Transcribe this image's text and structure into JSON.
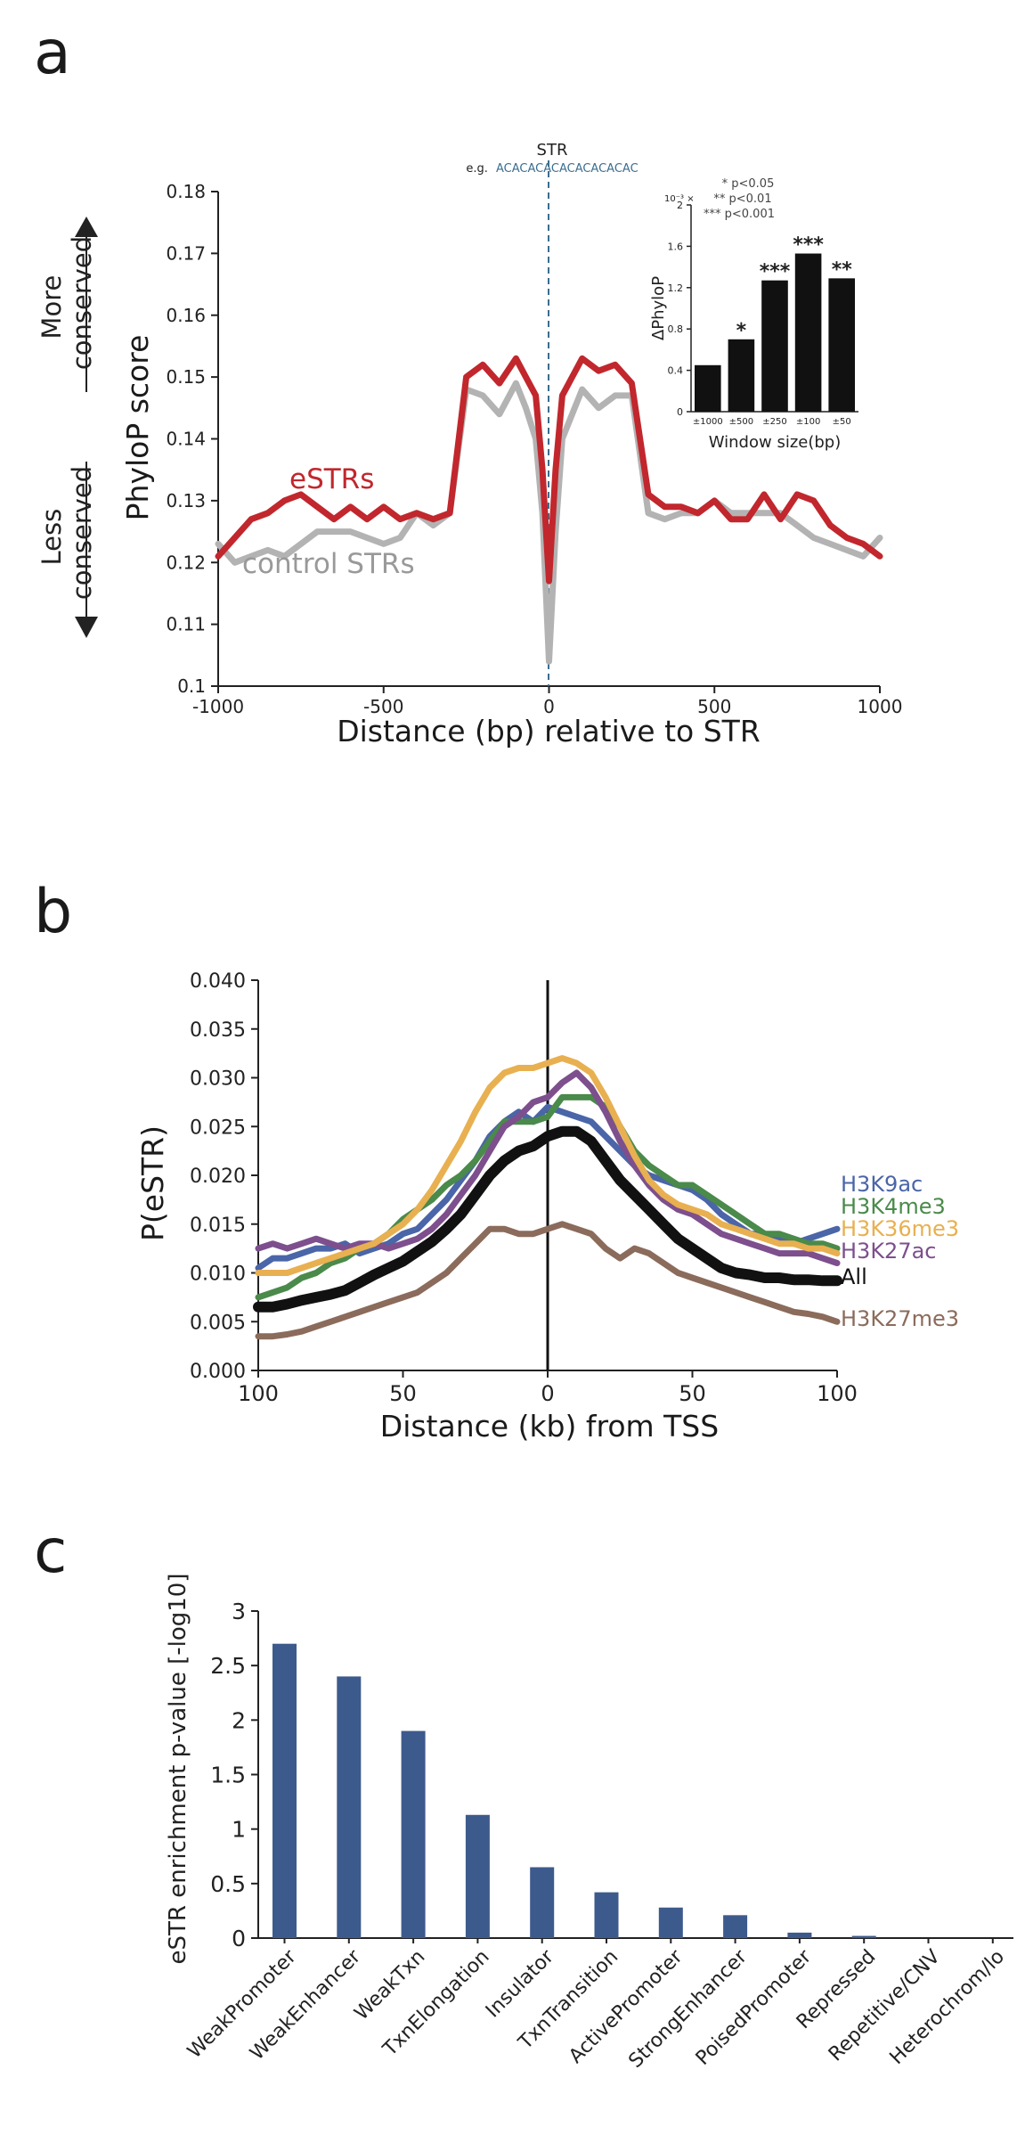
{
  "panels": {
    "a": {
      "letter": "a"
    },
    "b": {
      "letter": "b"
    },
    "c": {
      "letter": "c"
    }
  },
  "chart_data": [
    {
      "panel": "a",
      "type": "line",
      "xlabel": "Distance (bp) relative to STR",
      "ylabel": "PhyloP score",
      "xlim": [
        -1000,
        1000
      ],
      "ylim": [
        0.1,
        0.18
      ],
      "xticks": [
        "-1000",
        "-500",
        "0",
        "500",
        "1000"
      ],
      "yticks": [
        "0.1",
        "0.11",
        "0.12",
        "0.13",
        "0.14",
        "0.15",
        "0.16",
        "0.17",
        "0.18"
      ],
      "grid": false,
      "center_marker": {
        "label": "STR",
        "example_prefix": "e.g.",
        "example_motif": "ACACACACACACACACAC"
      },
      "side_labels": {
        "top": [
          "More",
          "conserved"
        ],
        "bottom": [
          "Less",
          "conserved"
        ]
      },
      "series": [
        {
          "name": "control STRs",
          "color": "#b3b3b3",
          "x": [
            -1000,
            -950,
            -900,
            -850,
            -800,
            -750,
            -700,
            -650,
            -600,
            -550,
            -500,
            -450,
            -400,
            -350,
            -300,
            -250,
            -200,
            -150,
            -100,
            -70,
            -40,
            -20,
            0,
            20,
            40,
            70,
            100,
            150,
            200,
            250,
            300,
            350,
            400,
            450,
            500,
            550,
            600,
            650,
            700,
            750,
            800,
            850,
            900,
            950,
            1000
          ],
          "y": [
            0.123,
            0.12,
            0.121,
            0.122,
            0.121,
            0.123,
            0.125,
            0.125,
            0.125,
            0.124,
            0.123,
            0.124,
            0.128,
            0.126,
            0.128,
            0.148,
            0.147,
            0.144,
            0.149,
            0.145,
            0.14,
            0.128,
            0.104,
            0.125,
            0.14,
            0.144,
            0.148,
            0.145,
            0.147,
            0.147,
            0.128,
            0.127,
            0.128,
            0.128,
            0.13,
            0.128,
            0.128,
            0.128,
            0.128,
            0.126,
            0.124,
            0.123,
            0.122,
            0.121,
            0.124
          ]
        },
        {
          "name": "eSTRs",
          "color": "#c1272d",
          "x": [
            -1000,
            -950,
            -900,
            -850,
            -800,
            -750,
            -700,
            -650,
            -600,
            -550,
            -500,
            -450,
            -400,
            -350,
            -300,
            -250,
            -200,
            -150,
            -100,
            -70,
            -40,
            -20,
            0,
            20,
            40,
            70,
            100,
            150,
            200,
            250,
            300,
            350,
            400,
            450,
            500,
            550,
            600,
            650,
            700,
            750,
            800,
            850,
            900,
            950,
            1000
          ],
          "y": [
            0.121,
            0.124,
            0.127,
            0.128,
            0.13,
            0.131,
            0.129,
            0.127,
            0.129,
            0.127,
            0.129,
            0.127,
            0.128,
            0.127,
            0.128,
            0.15,
            0.152,
            0.149,
            0.153,
            0.15,
            0.147,
            0.135,
            0.117,
            0.135,
            0.147,
            0.15,
            0.153,
            0.151,
            0.152,
            0.149,
            0.131,
            0.129,
            0.129,
            0.128,
            0.13,
            0.127,
            0.127,
            0.131,
            0.127,
            0.131,
            0.13,
            0.126,
            0.124,
            0.123,
            0.121
          ]
        }
      ],
      "series_labels": [
        "eSTRs",
        "control STRs"
      ]
    },
    {
      "panel": "a-inset",
      "type": "bar",
      "title": "",
      "xlabel": "Window size(bp)",
      "ylabel": "ΔPhyloP",
      "scale_note": "10⁻³ ×",
      "categories": [
        "±1000",
        "±500",
        "±250",
        "±100",
        "±50"
      ],
      "values": [
        0.45,
        0.7,
        1.27,
        1.53,
        1.29
      ],
      "significance": [
        "",
        "*",
        "***",
        "***",
        "**"
      ],
      "ylim": [
        0,
        2
      ],
      "yticks": [
        "0",
        "0.4",
        "0.8",
        "1.2",
        "1.6",
        "2"
      ],
      "legend_lines": [
        "* p<0.05",
        "** p<0.01",
        "*** p<0.001"
      ],
      "bar_color": "#111111"
    },
    {
      "panel": "b",
      "type": "line",
      "xlabel": "Distance (kb) from TSS",
      "ylabel": "P(eSTR)",
      "xlim": [
        -100,
        100
      ],
      "ylim": [
        0,
        0.04
      ],
      "xticks": [
        "100",
        "50",
        "0",
        "50",
        "100"
      ],
      "yticks": [
        "0.000",
        "0.005",
        "0.010",
        "0.015",
        "0.020",
        "0.025",
        "0.030",
        "0.035",
        "0.040"
      ],
      "grid": false,
      "x": [
        -100,
        -95,
        -90,
        -85,
        -80,
        -75,
        -70,
        -65,
        -60,
        -55,
        -50,
        -45,
        -40,
        -35,
        -30,
        -25,
        -20,
        -15,
        -10,
        -5,
        0,
        5,
        10,
        15,
        20,
        25,
        30,
        35,
        40,
        45,
        50,
        55,
        60,
        65,
        70,
        75,
        80,
        85,
        90,
        95,
        100
      ],
      "series": [
        {
          "name": "H3K9ac",
          "color": "#4a65a8",
          "y": [
            0.0105,
            0.0115,
            0.0115,
            0.012,
            0.0125,
            0.0125,
            0.013,
            0.012,
            0.0125,
            0.013,
            0.014,
            0.0145,
            0.016,
            0.0175,
            0.0195,
            0.0215,
            0.024,
            0.0255,
            0.0265,
            0.0255,
            0.027,
            0.0265,
            0.026,
            0.0255,
            0.024,
            0.0225,
            0.021,
            0.02,
            0.0195,
            0.019,
            0.0185,
            0.0175,
            0.016,
            0.015,
            0.014,
            0.014,
            0.0135,
            0.013,
            0.0135,
            0.014,
            0.0145
          ]
        },
        {
          "name": "H3K4me3",
          "color": "#4a8a4a",
          "y": [
            0.0075,
            0.008,
            0.0085,
            0.0095,
            0.01,
            0.011,
            0.0115,
            0.0125,
            0.013,
            0.014,
            0.0155,
            0.0165,
            0.0175,
            0.019,
            0.02,
            0.0215,
            0.0235,
            0.0255,
            0.0255,
            0.0255,
            0.026,
            0.028,
            0.028,
            0.028,
            0.027,
            0.025,
            0.0225,
            0.021,
            0.02,
            0.019,
            0.019,
            0.018,
            0.017,
            0.016,
            0.015,
            0.014,
            0.014,
            0.0135,
            0.013,
            0.013,
            0.0125
          ]
        },
        {
          "name": "H3K36me3",
          "color": "#e8b050",
          "y": [
            0.01,
            0.01,
            0.01,
            0.0105,
            0.011,
            0.0115,
            0.012,
            0.0125,
            0.013,
            0.014,
            0.015,
            0.0165,
            0.0185,
            0.021,
            0.0235,
            0.0265,
            0.029,
            0.0305,
            0.031,
            0.031,
            0.0315,
            0.032,
            0.0315,
            0.0305,
            0.028,
            0.025,
            0.022,
            0.0195,
            0.018,
            0.017,
            0.0165,
            0.016,
            0.015,
            0.0145,
            0.014,
            0.0135,
            0.013,
            0.013,
            0.0125,
            0.0125,
            0.012
          ]
        },
        {
          "name": "H3K27ac",
          "color": "#7d4f8d",
          "y": [
            0.0125,
            0.013,
            0.0125,
            0.013,
            0.0135,
            0.013,
            0.0125,
            0.013,
            0.013,
            0.0125,
            0.013,
            0.0135,
            0.0145,
            0.016,
            0.018,
            0.02,
            0.0225,
            0.025,
            0.026,
            0.0275,
            0.028,
            0.0295,
            0.0305,
            0.029,
            0.0265,
            0.0235,
            0.021,
            0.019,
            0.0175,
            0.0165,
            0.016,
            0.015,
            0.014,
            0.0135,
            0.013,
            0.0125,
            0.012,
            0.012,
            0.012,
            0.0115,
            0.011
          ]
        },
        {
          "name": "All",
          "color": "#111111",
          "y": [
            0.0065,
            0.0065,
            0.0068,
            0.0072,
            0.0075,
            0.0078,
            0.0082,
            0.009,
            0.0098,
            0.0105,
            0.0112,
            0.0122,
            0.0132,
            0.0145,
            0.016,
            0.018,
            0.02,
            0.0215,
            0.0225,
            0.023,
            0.024,
            0.0245,
            0.0245,
            0.0235,
            0.0215,
            0.0195,
            0.018,
            0.0165,
            0.015,
            0.0135,
            0.0125,
            0.0115,
            0.0105,
            0.01,
            0.0098,
            0.0095,
            0.0095,
            0.0093,
            0.0093,
            0.0092,
            0.0092
          ]
        },
        {
          "name": "H3K27me3",
          "color": "#8b6b5b",
          "y": [
            0.0035,
            0.0035,
            0.0037,
            0.004,
            0.0045,
            0.005,
            0.0055,
            0.006,
            0.0065,
            0.007,
            0.0075,
            0.008,
            0.009,
            0.01,
            0.0115,
            0.013,
            0.0145,
            0.0145,
            0.014,
            0.014,
            0.0145,
            0.015,
            0.0145,
            0.014,
            0.0125,
            0.0115,
            0.0125,
            0.012,
            0.011,
            0.01,
            0.0095,
            0.009,
            0.0085,
            0.008,
            0.0075,
            0.007,
            0.0065,
            0.006,
            0.0058,
            0.0055,
            0.005
          ]
        }
      ]
    },
    {
      "panel": "c",
      "type": "bar",
      "ylabel": "eSTR enrichment p-value [-log10]",
      "xlabel": "",
      "categories": [
        "WeakPromoter",
        "WeakEnhancer",
        "WeakTxn",
        "TxnElongation",
        "Insulator",
        "TxnTransition",
        "ActivePromoter",
        "StrongEnhancer",
        "PoisedPromoter",
        "Repressed",
        "Repetitive/CNV",
        "Heterochrom/lo"
      ],
      "values": [
        2.7,
        2.4,
        1.9,
        1.13,
        0.65,
        0.42,
        0.28,
        0.21,
        0.05,
        0.02,
        0,
        0
      ],
      "ylim": [
        0,
        3
      ],
      "yticks": [
        "0",
        "0.5",
        "1",
        "1.5",
        "2",
        "2.5",
        "3"
      ],
      "grid": false,
      "bar_color": "#3d5a8c"
    }
  ]
}
